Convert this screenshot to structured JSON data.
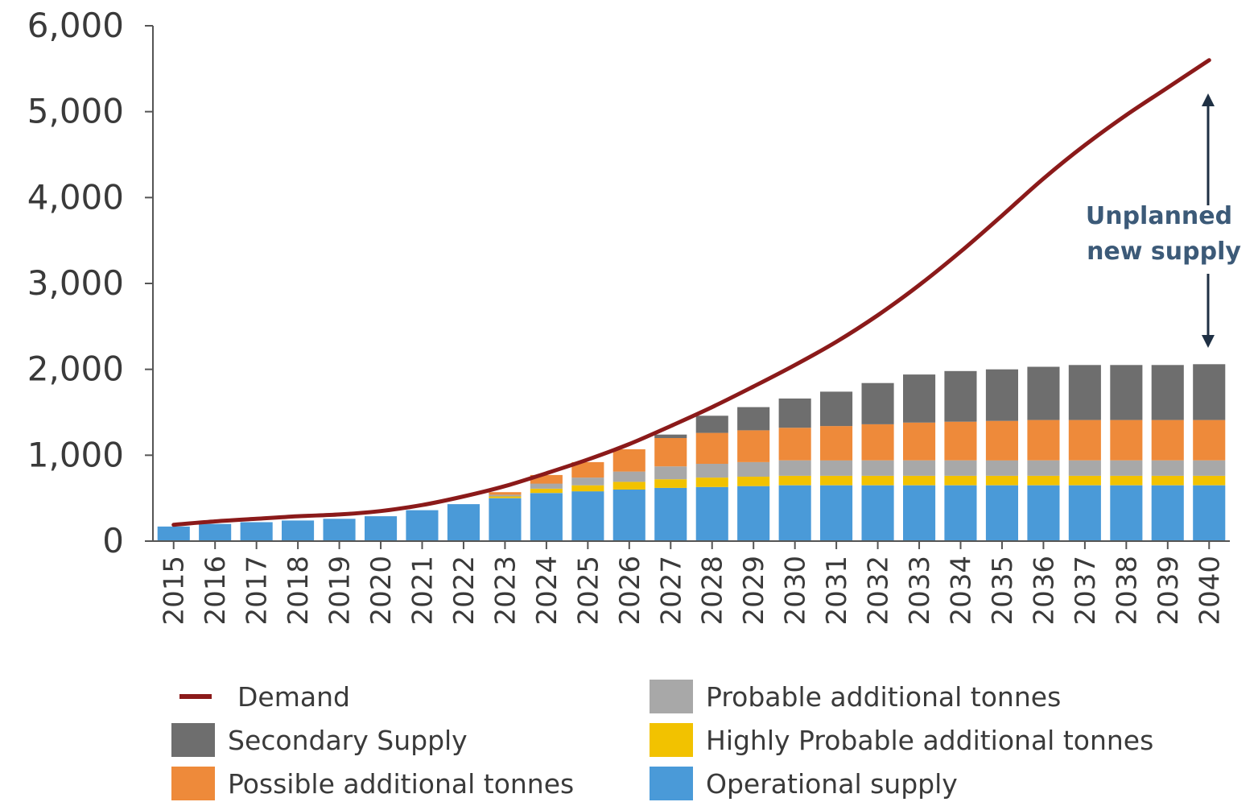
{
  "chart_data": {
    "type": "bar",
    "stacked": true,
    "categories": [
      "2015",
      "2016",
      "2017",
      "2018",
      "2019",
      "2020",
      "2021",
      "2022",
      "2023",
      "2024",
      "2025",
      "2026",
      "2027",
      "2028",
      "2029",
      "2030",
      "2031",
      "2032",
      "2033",
      "2034",
      "2035",
      "2036",
      "2037",
      "2038",
      "2039",
      "2040"
    ],
    "ylim": [
      0,
      6000
    ],
    "yticks": [
      0,
      1000,
      2000,
      3000,
      4000,
      5000,
      6000
    ],
    "ytick_labels": [
      "0",
      "1,000",
      "2,000",
      "3,000",
      "4,000",
      "5,000",
      "6,000"
    ],
    "xlabel": "",
    "ylabel": "",
    "series": [
      {
        "name": "Operational supply",
        "color": "#4a9ad8",
        "values": [
          170,
          200,
          220,
          240,
          260,
          290,
          360,
          430,
          500,
          560,
          580,
          600,
          620,
          630,
          640,
          650,
          650,
          650,
          650,
          650,
          650,
          650,
          650,
          650,
          650,
          650
        ]
      },
      {
        "name": "Highly Probable additional tonnes",
        "color": "#f2c200",
        "values": [
          0,
          0,
          0,
          0,
          0,
          0,
          0,
          0,
          20,
          50,
          70,
          90,
          100,
          110,
          110,
          110,
          110,
          110,
          110,
          110,
          110,
          110,
          110,
          110,
          110,
          110
        ]
      },
      {
        "name": "Probable additional tonnes",
        "color": "#a8a8a8",
        "values": [
          0,
          0,
          0,
          0,
          0,
          0,
          0,
          0,
          20,
          60,
          90,
          120,
          150,
          160,
          170,
          180,
          180,
          180,
          180,
          180,
          180,
          180,
          180,
          180,
          180,
          180
        ]
      },
      {
        "name": "Possible additional tonnes",
        "color": "#ee8a3a",
        "values": [
          0,
          0,
          0,
          0,
          0,
          0,
          0,
          0,
          30,
          100,
          180,
          260,
          330,
          360,
          370,
          380,
          400,
          420,
          440,
          450,
          460,
          470,
          470,
          470,
          470,
          470
        ]
      },
      {
        "name": "Secondary Supply",
        "color": "#6e6e6e",
        "values": [
          0,
          0,
          0,
          0,
          0,
          0,
          0,
          0,
          0,
          0,
          0,
          0,
          40,
          200,
          270,
          340,
          400,
          480,
          560,
          590,
          600,
          620,
          640,
          640,
          640,
          650
        ]
      }
    ],
    "line_series": {
      "name": "Demand",
      "color": "#8b1a1a",
      "values": [
        190,
        230,
        260,
        290,
        310,
        350,
        420,
        520,
        640,
        790,
        950,
        1130,
        1340,
        1560,
        1800,
        2050,
        2320,
        2630,
        2980,
        3370,
        3790,
        4220,
        4610,
        4960,
        5280,
        5600
      ]
    },
    "annotation": {
      "line1": "Unplanned",
      "line2": "new supply"
    },
    "legend": [
      {
        "label": "Demand",
        "kind": "line",
        "color": "#8b1a1a"
      },
      {
        "label": "Secondary Supply",
        "kind": "box",
        "color": "#6e6e6e"
      },
      {
        "label": "Possible additional tonnes",
        "kind": "box",
        "color": "#ee8a3a"
      },
      {
        "label": "Probable additional tonnes",
        "kind": "box",
        "color": "#a8a8a8"
      },
      {
        "label": "Highly Probable additional tonnes",
        "kind": "box",
        "color": "#f2c200"
      },
      {
        "label": "Operational supply",
        "kind": "box",
        "color": "#4a9ad8"
      }
    ],
    "legend_position": "bottom"
  }
}
